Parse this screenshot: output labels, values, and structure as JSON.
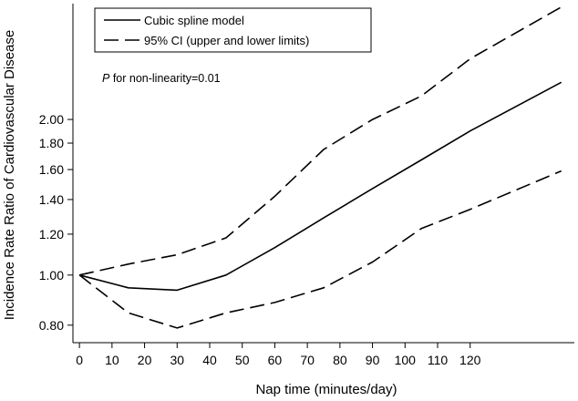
{
  "chart_data": {
    "type": "line",
    "xlabel": "Nap time (minutes/day)",
    "ylabel": "Incidence Rate Ratio of Cardiovascular Disease",
    "x_ticks": [
      0,
      10,
      20,
      30,
      40,
      50,
      60,
      70,
      80,
      90,
      100,
      110,
      120
    ],
    "y_ticks": [
      0.8,
      1.0,
      1.2,
      1.4,
      1.6,
      1.8,
      2.0
    ],
    "y_tick_labels": [
      "0.80",
      "1.00",
      "1.20",
      "1.40",
      "1.60",
      "1.80",
      "2.00"
    ],
    "y_scale": "log",
    "xlim": [
      -2,
      152
    ],
    "ylim": [
      0.74,
      3.35
    ],
    "series": [
      {
        "name": "Cubic spline model",
        "style": "solid",
        "x": [
          0,
          15,
          30,
          45,
          60,
          75,
          90,
          105,
          120,
          148
        ],
        "y": [
          1.0,
          0.945,
          0.935,
          1.0,
          1.13,
          1.29,
          1.47,
          1.67,
          1.9,
          2.36
        ]
      },
      {
        "name": "95% CI (upper and lower limits)",
        "style": "dashed",
        "x": [
          0,
          15,
          30,
          45,
          60,
          75,
          90,
          105,
          120,
          148
        ],
        "y": [
          1.0,
          1.05,
          1.095,
          1.18,
          1.42,
          1.75,
          2.0,
          2.22,
          2.62,
          3.3
        ]
      },
      {
        "name": "95% CI lower",
        "style": "dashed",
        "x": [
          0,
          15,
          30,
          45,
          60,
          75,
          90,
          105,
          120,
          148
        ],
        "y": [
          1.0,
          0.845,
          0.79,
          0.845,
          0.885,
          0.945,
          1.06,
          1.23,
          1.34,
          1.59
        ]
      }
    ],
    "legend": {
      "position": "top-left",
      "entries": [
        {
          "label": "Cubic spline model",
          "style": "solid"
        },
        {
          "label": "95% CI (upper and lower limits)",
          "style": "dashed"
        }
      ]
    },
    "annotation": {
      "p_symbol": "P",
      "text": " for non-linearity=0.01"
    }
  }
}
